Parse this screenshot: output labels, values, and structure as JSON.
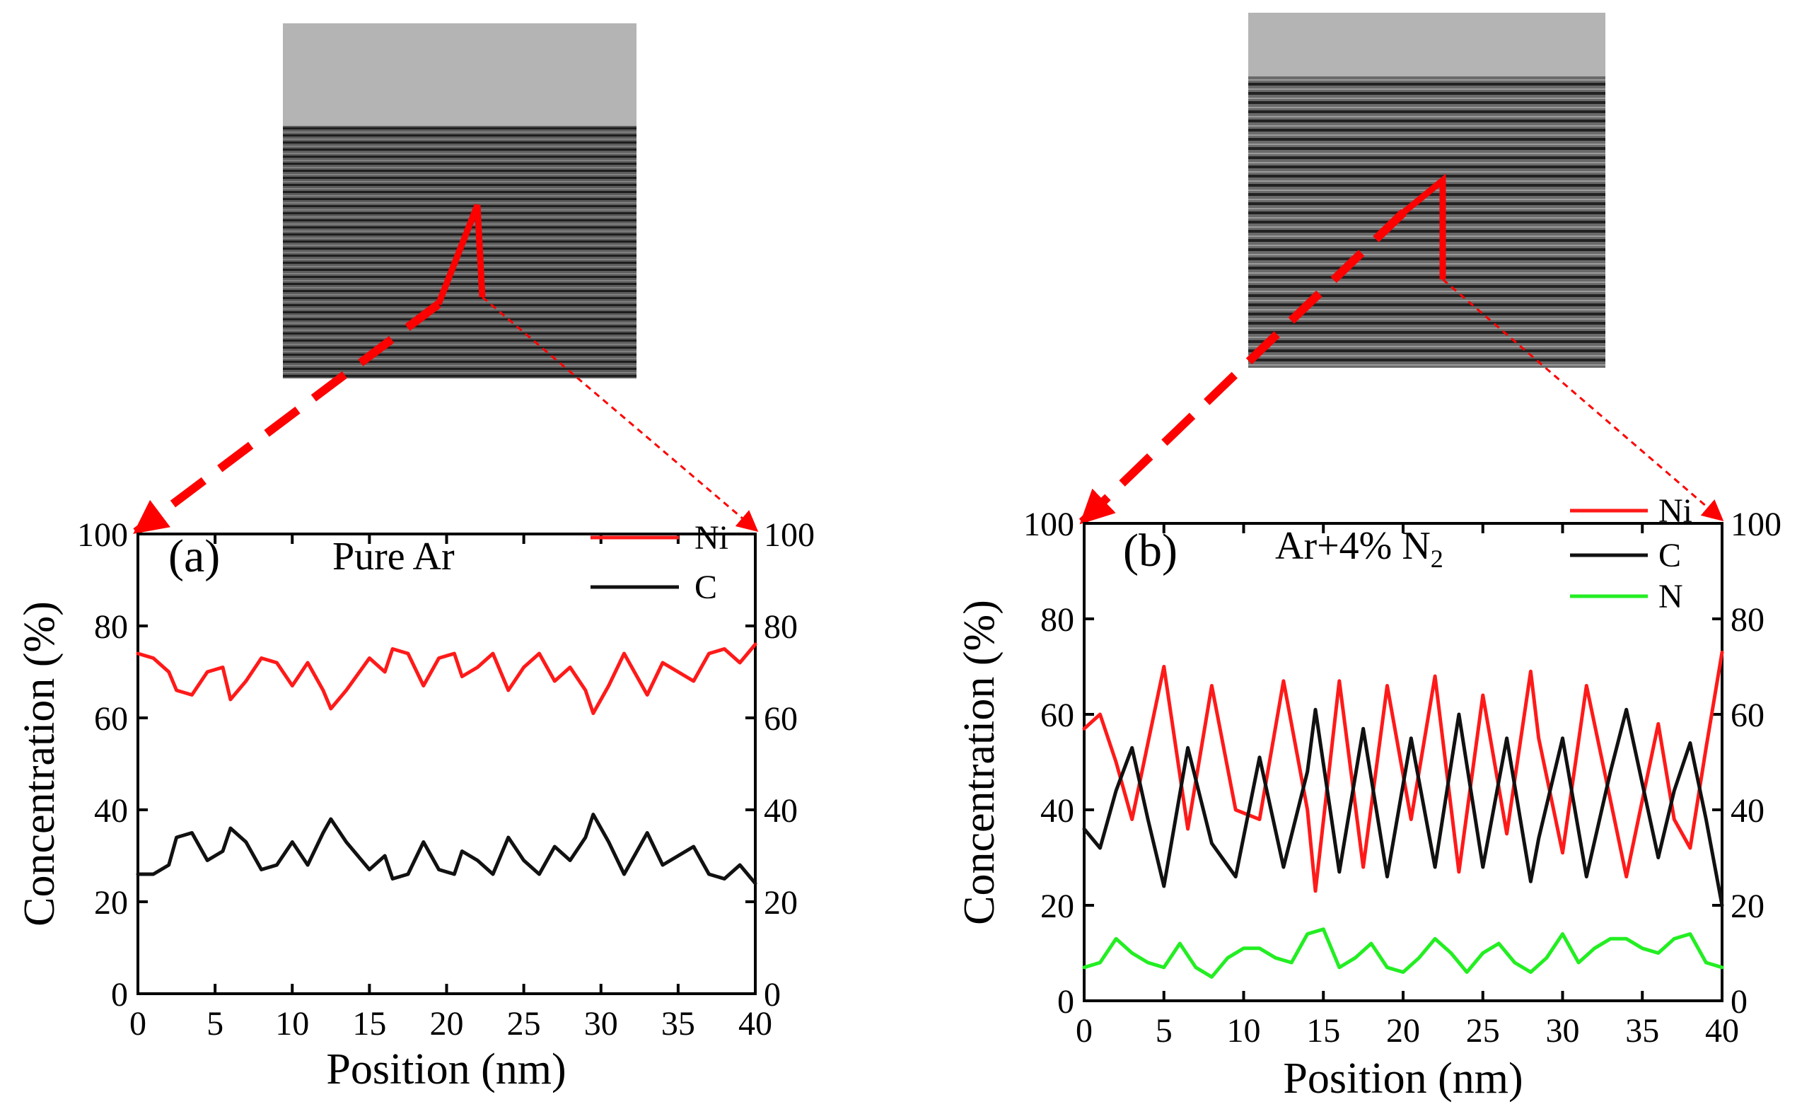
{
  "figure": {
    "colors": {
      "Ni": "#ff1a1a",
      "C": "#111111",
      "N": "#22ee22",
      "arrow": "#ff0000",
      "axis": "#000000"
    }
  },
  "chart_data": [
    {
      "type": "line",
      "panel_label": "(a)",
      "condition": {
        "text": "Pure Ar",
        "sub": ""
      },
      "xlabel": "Position (nm)",
      "ylabel": "Concentration (%)",
      "xlim": [
        0,
        40
      ],
      "ylim": [
        0,
        100
      ],
      "xticks": [
        "0",
        "5",
        "10",
        "15",
        "20",
        "25",
        "30",
        "35",
        "40"
      ],
      "yticks": [
        "0",
        "20",
        "40",
        "60",
        "80",
        "100"
      ],
      "legend_position": "top-right",
      "series": [
        {
          "name": "Ni",
          "color": "#ff1a1a",
          "x": [
            0,
            1,
            2,
            2.5,
            3.5,
            4.5,
            5.5,
            6,
            7,
            8,
            9,
            10,
            11,
            12,
            12.5,
            13.5,
            15,
            16,
            16.5,
            17.5,
            18.5,
            19.5,
            20.5,
            21,
            22,
            23,
            24,
            25,
            26,
            27,
            28,
            29,
            29.5,
            30.5,
            31.5,
            32,
            33,
            34,
            35,
            36,
            37,
            38,
            39,
            40
          ],
          "y": [
            74,
            73,
            70,
            66,
            65,
            70,
            71,
            64,
            68,
            73,
            72,
            67,
            72,
            66,
            62,
            66,
            73,
            70,
            75,
            74,
            67,
            73,
            74,
            69,
            71,
            74,
            66,
            71,
            74,
            68,
            71,
            66,
            61,
            67,
            74,
            71,
            65,
            72,
            70,
            68,
            74,
            75,
            72,
            76
          ]
        },
        {
          "name": "C",
          "color": "#111111",
          "x": [
            0,
            1,
            2,
            2.5,
            3.5,
            4.5,
            5.5,
            6,
            7,
            8,
            9,
            10,
            11,
            12,
            12.5,
            13.5,
            15,
            16,
            16.5,
            17.5,
            18.5,
            19.5,
            20.5,
            21,
            22,
            23,
            24,
            25,
            26,
            27,
            28,
            29,
            29.5,
            30.5,
            31.5,
            32,
            33,
            34,
            35,
            36,
            37,
            38,
            39,
            40
          ],
          "y": [
            26,
            26,
            28,
            34,
            35,
            29,
            31,
            36,
            33,
            27,
            28,
            33,
            28,
            35,
            38,
            33,
            27,
            30,
            25,
            26,
            33,
            27,
            26,
            31,
            29,
            26,
            34,
            29,
            26,
            32,
            29,
            34,
            39,
            33,
            26,
            29,
            35,
            28,
            30,
            32,
            26,
            25,
            28,
            24
          ]
        }
      ]
    },
    {
      "type": "line",
      "panel_label": "(b)",
      "condition": {
        "text": "Ar+4% N",
        "sub": "2"
      },
      "xlabel": "Position (nm)",
      "ylabel": "Concentration (%)",
      "xlim": [
        0,
        40
      ],
      "ylim": [
        0,
        100
      ],
      "xticks": [
        "0",
        "5",
        "10",
        "15",
        "20",
        "25",
        "30",
        "35",
        "40"
      ],
      "yticks": [
        "0",
        "20",
        "40",
        "60",
        "80",
        "100"
      ],
      "legend_position": "top-right",
      "series": [
        {
          "name": "Ni",
          "color": "#ff1a1a",
          "x": [
            0,
            1,
            2,
            3,
            4,
            5,
            6.5,
            8,
            9.5,
            11,
            12.5,
            14,
            14.5,
            16,
            17.5,
            19,
            20.5,
            22,
            23.5,
            25,
            26.5,
            28,
            28.5,
            30,
            31.5,
            33,
            34,
            36,
            37,
            38,
            39,
            40
          ],
          "y": [
            57,
            60,
            50,
            38,
            54,
            70,
            36,
            66,
            40,
            38,
            67,
            40,
            23,
            67,
            28,
            66,
            38,
            68,
            27,
            64,
            35,
            69,
            55,
            31,
            66,
            42,
            26,
            58,
            38,
            32,
            53,
            73
          ]
        },
        {
          "name": "C",
          "color": "#111111",
          "x": [
            0,
            1,
            2,
            3,
            4,
            5,
            6.5,
            8,
            9.5,
            11,
            12.5,
            14,
            14.5,
            16,
            17.5,
            19,
            20.5,
            22,
            23.5,
            25,
            26.5,
            28,
            28.5,
            30,
            31.5,
            33,
            34,
            36,
            37,
            38,
            39,
            40
          ],
          "y": [
            36,
            32,
            44,
            53,
            38,
            24,
            53,
            33,
            26,
            51,
            28,
            48,
            61,
            27,
            57,
            26,
            55,
            28,
            60,
            28,
            55,
            25,
            34,
            55,
            26,
            48,
            61,
            30,
            44,
            54,
            38,
            20
          ]
        },
        {
          "name": "N",
          "color": "#22ee22",
          "x": [
            0,
            1,
            2,
            3,
            4,
            5,
            6,
            7,
            8,
            9,
            10,
            11,
            12,
            13,
            14,
            15,
            16,
            17,
            18,
            19,
            20,
            21,
            22,
            23,
            24,
            25,
            26,
            27,
            28,
            29,
            30,
            31,
            32,
            33,
            34,
            35,
            36,
            37,
            38,
            39,
            40
          ],
          "y": [
            7,
            8,
            13,
            10,
            8,
            7,
            12,
            7,
            5,
            9,
            11,
            11,
            9,
            8,
            14,
            15,
            7,
            9,
            12,
            7,
            6,
            9,
            13,
            10,
            6,
            10,
            12,
            8,
            6,
            9,
            14,
            8,
            11,
            13,
            13,
            11,
            10,
            13,
            14,
            8,
            7
          ]
        }
      ]
    }
  ]
}
